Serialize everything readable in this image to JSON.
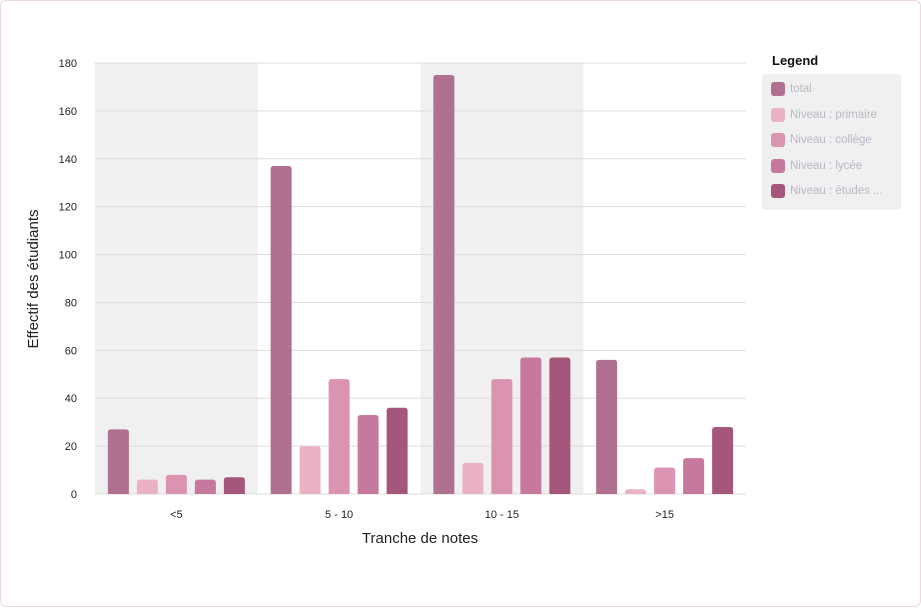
{
  "chart_data": {
    "type": "bar",
    "title": "",
    "xlabel": "Tranche de notes",
    "ylabel": "Effectif des étudiants",
    "categories": [
      "<5",
      "5 - 10",
      "10 - 15",
      ">15"
    ],
    "ylim": [
      0,
      180
    ],
    "yticks": [
      0,
      20,
      40,
      60,
      80,
      100,
      120,
      140,
      160,
      180
    ],
    "grid": true,
    "legend_placement": "right",
    "series": [
      {
        "name": "total",
        "color": "#b0708f",
        "values": [
          27,
          137,
          175,
          56
        ]
      },
      {
        "name": "Niveau : primaire",
        "color": "#ebb2c5",
        "values": [
          6,
          20,
          13,
          2
        ]
      },
      {
        "name": "Niveau : collège",
        "color": "#da93b0",
        "values": [
          8,
          48,
          48,
          11
        ]
      },
      {
        "name": "Niveau : lycée",
        "color": "#c6799c",
        "values": [
          6,
          33,
          57,
          15
        ]
      },
      {
        "name": "Niveau : études ...",
        "color": "#a4577a",
        "values": [
          7,
          36,
          57,
          28
        ]
      }
    ]
  },
  "legend": {
    "title": "Legend"
  },
  "colors": {
    "band_shade": "#f0f0f0",
    "grid": "#dddddd"
  }
}
